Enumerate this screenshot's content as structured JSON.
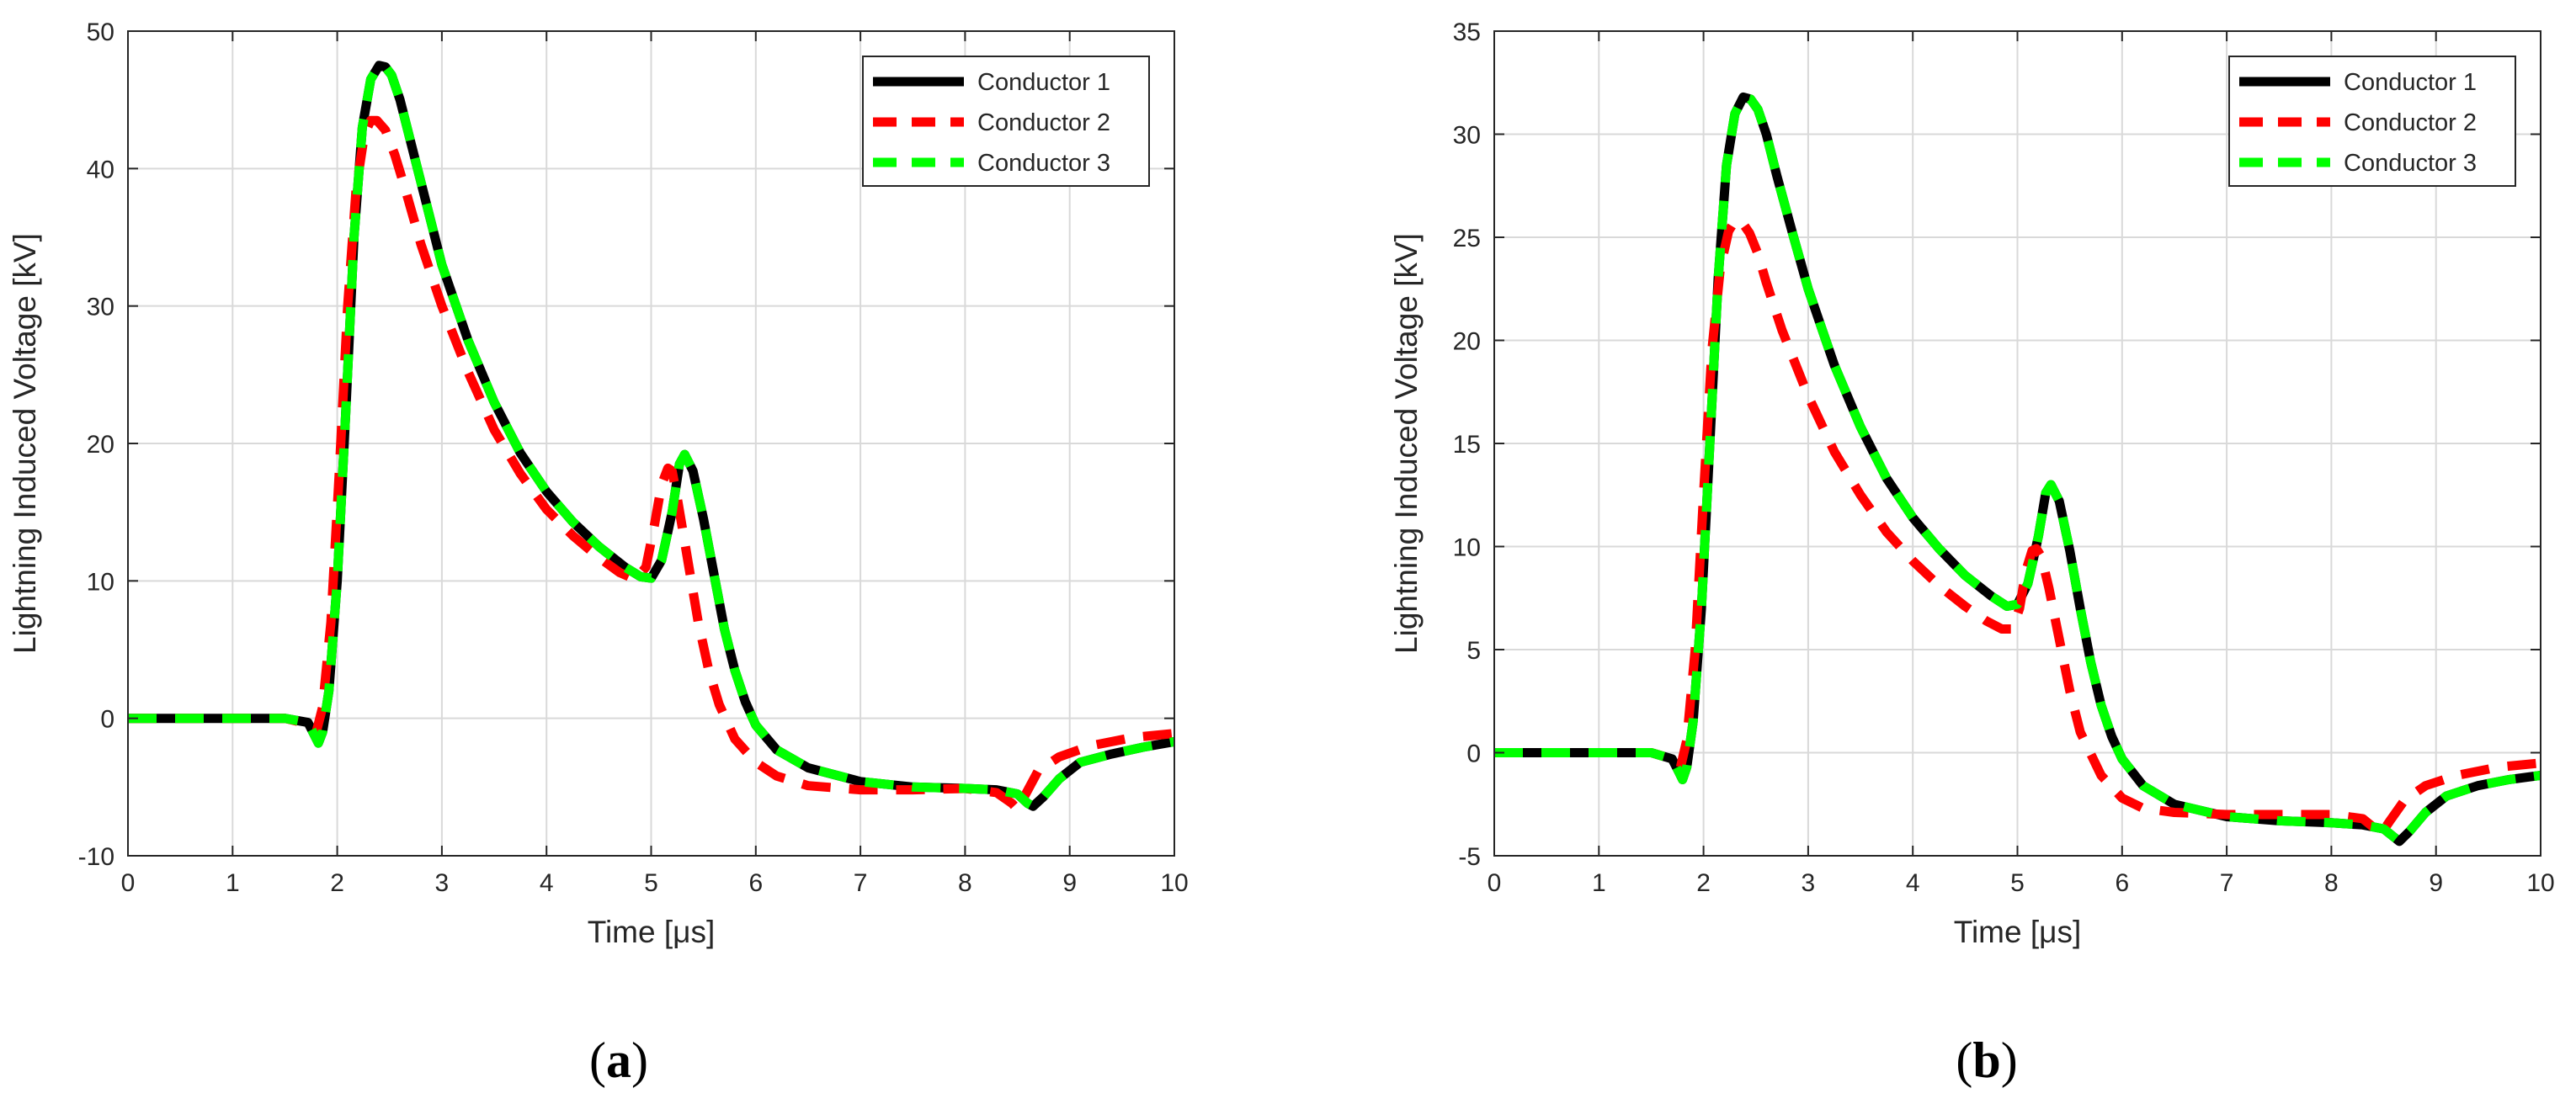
{
  "colors": {
    "conductor_1": "#000000",
    "conductor_2": "#ff0000",
    "conductor_3": "#00ff00"
  },
  "chart_data": [
    {
      "type": "line",
      "subfigure_label": "a",
      "xlabel": "Time [μs]",
      "ylabel": "Lightning Induced Voltage [kV]",
      "xlim": [
        0,
        10
      ],
      "ylim": [
        -10,
        50
      ],
      "xticks": [
        0,
        1,
        2,
        3,
        4,
        5,
        6,
        7,
        8,
        9,
        10
      ],
      "yticks": [
        -10,
        0,
        10,
        20,
        30,
        40,
        50
      ],
      "grid": true,
      "legend_position": "top-right",
      "series": [
        {
          "name": "Conductor 1",
          "style": "solid",
          "color": "#000000",
          "x": [
            0,
            1.5,
            1.72,
            1.78,
            1.82,
            1.86,
            1.92,
            2.0,
            2.08,
            2.16,
            2.24,
            2.32,
            2.4,
            2.46,
            2.52,
            2.6,
            2.7,
            2.85,
            3.0,
            3.25,
            3.5,
            3.75,
            4.0,
            4.25,
            4.5,
            4.75,
            4.9,
            5.0,
            5.1,
            5.2,
            5.27,
            5.32,
            5.4,
            5.5,
            5.6,
            5.7,
            5.8,
            5.9,
            6.0,
            6.2,
            6.5,
            7.0,
            7.5,
            8.0,
            8.3,
            8.5,
            8.6,
            8.65,
            8.75,
            8.9,
            9.1,
            9.4,
            9.7,
            10.0
          ],
          "y": [
            0,
            0,
            -0.3,
            -1.2,
            -1.8,
            -1.0,
            2.0,
            10.0,
            22.0,
            35.0,
            43.0,
            46.5,
            47.5,
            47.4,
            46.8,
            45.0,
            42.0,
            37.5,
            33.0,
            27.5,
            23.0,
            19.3,
            16.5,
            14.3,
            12.5,
            11.0,
            10.3,
            10.2,
            11.5,
            15.0,
            18.5,
            19.2,
            18.0,
            14.5,
            10.5,
            6.5,
            3.5,
            1.2,
            -0.5,
            -2.3,
            -3.6,
            -4.6,
            -5.0,
            -5.1,
            -5.2,
            -5.5,
            -6.2,
            -6.4,
            -5.7,
            -4.4,
            -3.2,
            -2.6,
            -2.1,
            -1.7
          ]
        },
        {
          "name": "Conductor 2",
          "style": "dashed",
          "color": "#ff0000",
          "x": [
            0,
            1.5,
            1.72,
            1.8,
            1.86,
            1.94,
            2.02,
            2.1,
            2.18,
            2.26,
            2.32,
            2.38,
            2.46,
            2.55,
            2.65,
            2.8,
            3.0,
            3.25,
            3.5,
            3.75,
            4.0,
            4.25,
            4.5,
            4.7,
            4.85,
            4.95,
            5.03,
            5.1,
            5.16,
            5.2,
            5.25,
            5.35,
            5.45,
            5.55,
            5.65,
            5.8,
            6.0,
            6.2,
            6.5,
            7.0,
            7.5,
            8.0,
            8.3,
            8.45,
            8.5,
            8.58,
            8.7,
            8.9,
            9.2,
            9.6,
            10.0
          ],
          "y": [
            0,
            0,
            -0.4,
            -1.0,
            0.8,
            7.0,
            18.0,
            30.0,
            38.5,
            42.5,
            43.5,
            43.5,
            42.8,
            41.0,
            38.5,
            34.5,
            30.0,
            25.2,
            21.0,
            17.8,
            15.2,
            13.3,
            11.7,
            10.6,
            10.1,
            11.0,
            14.0,
            17.0,
            18.2,
            18.0,
            16.0,
            11.5,
            7.0,
            3.5,
            1.0,
            -1.5,
            -3.2,
            -4.2,
            -4.9,
            -5.2,
            -5.2,
            -5.1,
            -5.4,
            -6.2,
            -6.6,
            -5.5,
            -3.8,
            -2.8,
            -2.0,
            -1.4,
            -1.1
          ]
        },
        {
          "name": "Conductor 3",
          "style": "dashed",
          "color": "#00ff00",
          "x": [
            0,
            1.5,
            1.72,
            1.78,
            1.82,
            1.86,
            1.92,
            2.0,
            2.08,
            2.16,
            2.24,
            2.32,
            2.4,
            2.46,
            2.52,
            2.6,
            2.7,
            2.85,
            3.0,
            3.25,
            3.5,
            3.75,
            4.0,
            4.25,
            4.5,
            4.75,
            4.9,
            5.0,
            5.1,
            5.2,
            5.27,
            5.32,
            5.4,
            5.5,
            5.6,
            5.7,
            5.8,
            5.9,
            6.0,
            6.2,
            6.5,
            7.0,
            7.5,
            8.0,
            8.3,
            8.5,
            8.6,
            8.65,
            8.75,
            8.9,
            9.1,
            9.4,
            9.7,
            10.0
          ],
          "y": [
            0,
            0,
            -0.3,
            -1.2,
            -1.8,
            -1.0,
            2.0,
            10.0,
            22.0,
            35.0,
            43.0,
            46.5,
            47.5,
            47.4,
            46.8,
            45.0,
            42.0,
            37.5,
            33.0,
            27.5,
            23.0,
            19.3,
            16.5,
            14.3,
            12.5,
            11.0,
            10.3,
            10.2,
            11.5,
            15.0,
            18.5,
            19.2,
            18.0,
            14.5,
            10.5,
            6.5,
            3.5,
            1.2,
            -0.5,
            -2.3,
            -3.6,
            -4.6,
            -5.0,
            -5.1,
            -5.2,
            -5.5,
            -6.2,
            -6.4,
            -5.7,
            -4.4,
            -3.2,
            -2.6,
            -2.1,
            -1.7
          ]
        }
      ]
    },
    {
      "type": "line",
      "subfigure_label": "b",
      "xlabel": "Time [μs]",
      "ylabel": "Lightning Induced Voltage [kV]",
      "xlim": [
        0,
        10
      ],
      "ylim": [
        -5,
        35
      ],
      "xticks": [
        0,
        1,
        2,
        3,
        4,
        5,
        6,
        7,
        8,
        9,
        10
      ],
      "yticks": [
        -5,
        0,
        5,
        10,
        15,
        20,
        25,
        30,
        35
      ],
      "grid": true,
      "legend_position": "top-right",
      "series": [
        {
          "name": "Conductor 1",
          "style": "solid",
          "color": "#000000",
          "x": [
            0,
            1.5,
            1.7,
            1.76,
            1.8,
            1.84,
            1.9,
            1.98,
            2.06,
            2.14,
            2.22,
            2.3,
            2.38,
            2.45,
            2.52,
            2.6,
            2.7,
            2.85,
            3.0,
            3.25,
            3.5,
            3.75,
            4.0,
            4.25,
            4.5,
            4.75,
            4.9,
            5.0,
            5.1,
            5.2,
            5.27,
            5.32,
            5.4,
            5.5,
            5.6,
            5.7,
            5.8,
            5.9,
            6.0,
            6.2,
            6.5,
            7.0,
            7.5,
            8.0,
            8.3,
            8.5,
            8.6,
            8.65,
            8.75,
            8.9,
            9.1,
            9.4,
            9.7,
            10.0
          ],
          "y": [
            0,
            0,
            -0.3,
            -0.9,
            -1.3,
            -0.7,
            1.5,
            7.0,
            15.0,
            23.0,
            28.5,
            31.0,
            31.8,
            31.7,
            31.2,
            30.0,
            28.0,
            25.2,
            22.5,
            18.8,
            15.8,
            13.3,
            11.4,
            9.9,
            8.6,
            7.6,
            7.1,
            7.2,
            8.2,
            10.5,
            12.6,
            13.0,
            12.2,
            9.8,
            7.0,
            4.4,
            2.3,
            0.8,
            -0.3,
            -1.6,
            -2.5,
            -3.1,
            -3.3,
            -3.4,
            -3.5,
            -3.7,
            -4.1,
            -4.3,
            -3.8,
            -2.9,
            -2.1,
            -1.6,
            -1.3,
            -1.1
          ]
        },
        {
          "name": "Conductor 2",
          "style": "dashed",
          "color": "#ff0000",
          "x": [
            0,
            1.5,
            1.7,
            1.78,
            1.84,
            1.92,
            2.0,
            2.08,
            2.16,
            2.24,
            2.3,
            2.36,
            2.44,
            2.52,
            2.6,
            2.75,
            3.0,
            3.25,
            3.5,
            3.75,
            4.0,
            4.25,
            4.5,
            4.7,
            4.85,
            4.95,
            5.02,
            5.08,
            5.14,
            5.18,
            5.23,
            5.3,
            5.4,
            5.5,
            5.6,
            5.8,
            6.0,
            6.2,
            6.5,
            7.0,
            7.5,
            8.0,
            8.3,
            8.42,
            8.48,
            8.56,
            8.7,
            8.9,
            9.2,
            9.6,
            10.0
          ],
          "y": [
            0,
            0,
            -0.3,
            -0.7,
            0.6,
            5.0,
            12.5,
            19.5,
            23.5,
            25.3,
            25.8,
            25.8,
            25.2,
            24.2,
            22.8,
            20.5,
            17.3,
            14.6,
            12.5,
            10.7,
            9.3,
            8.1,
            7.1,
            6.4,
            6.0,
            6.0,
            7.0,
            8.8,
            9.8,
            9.9,
            9.5,
            8.0,
            5.5,
            3.0,
            1.0,
            -1.1,
            -2.2,
            -2.7,
            -2.9,
            -3.0,
            -3.0,
            -3.0,
            -3.2,
            -3.7,
            -3.9,
            -3.3,
            -2.3,
            -1.6,
            -1.1,
            -0.7,
            -0.5
          ]
        },
        {
          "name": "Conductor 3",
          "style": "dashed",
          "color": "#00ff00",
          "x": [
            0,
            1.5,
            1.7,
            1.76,
            1.8,
            1.84,
            1.9,
            1.98,
            2.06,
            2.14,
            2.22,
            2.3,
            2.38,
            2.45,
            2.52,
            2.6,
            2.7,
            2.85,
            3.0,
            3.25,
            3.5,
            3.75,
            4.0,
            4.25,
            4.5,
            4.75,
            4.9,
            5.0,
            5.1,
            5.2,
            5.27,
            5.32,
            5.4,
            5.5,
            5.6,
            5.7,
            5.8,
            5.9,
            6.0,
            6.2,
            6.5,
            7.0,
            7.5,
            8.0,
            8.3,
            8.5,
            8.6,
            8.65,
            8.75,
            8.9,
            9.1,
            9.4,
            9.7,
            10.0
          ],
          "y": [
            0,
            0,
            -0.3,
            -0.9,
            -1.3,
            -0.7,
            1.5,
            7.0,
            15.0,
            23.0,
            28.5,
            31.0,
            31.8,
            31.7,
            31.2,
            30.0,
            28.0,
            25.2,
            22.5,
            18.8,
            15.8,
            13.3,
            11.4,
            9.9,
            8.6,
            7.6,
            7.1,
            7.2,
            8.2,
            10.5,
            12.6,
            13.0,
            12.2,
            9.8,
            7.0,
            4.4,
            2.3,
            0.8,
            -0.3,
            -1.6,
            -2.5,
            -3.1,
            -3.3,
            -3.4,
            -3.5,
            -3.7,
            -4.1,
            -4.3,
            -3.8,
            -2.9,
            -2.1,
            -1.6,
            -1.3,
            -1.1
          ]
        }
      ]
    }
  ]
}
